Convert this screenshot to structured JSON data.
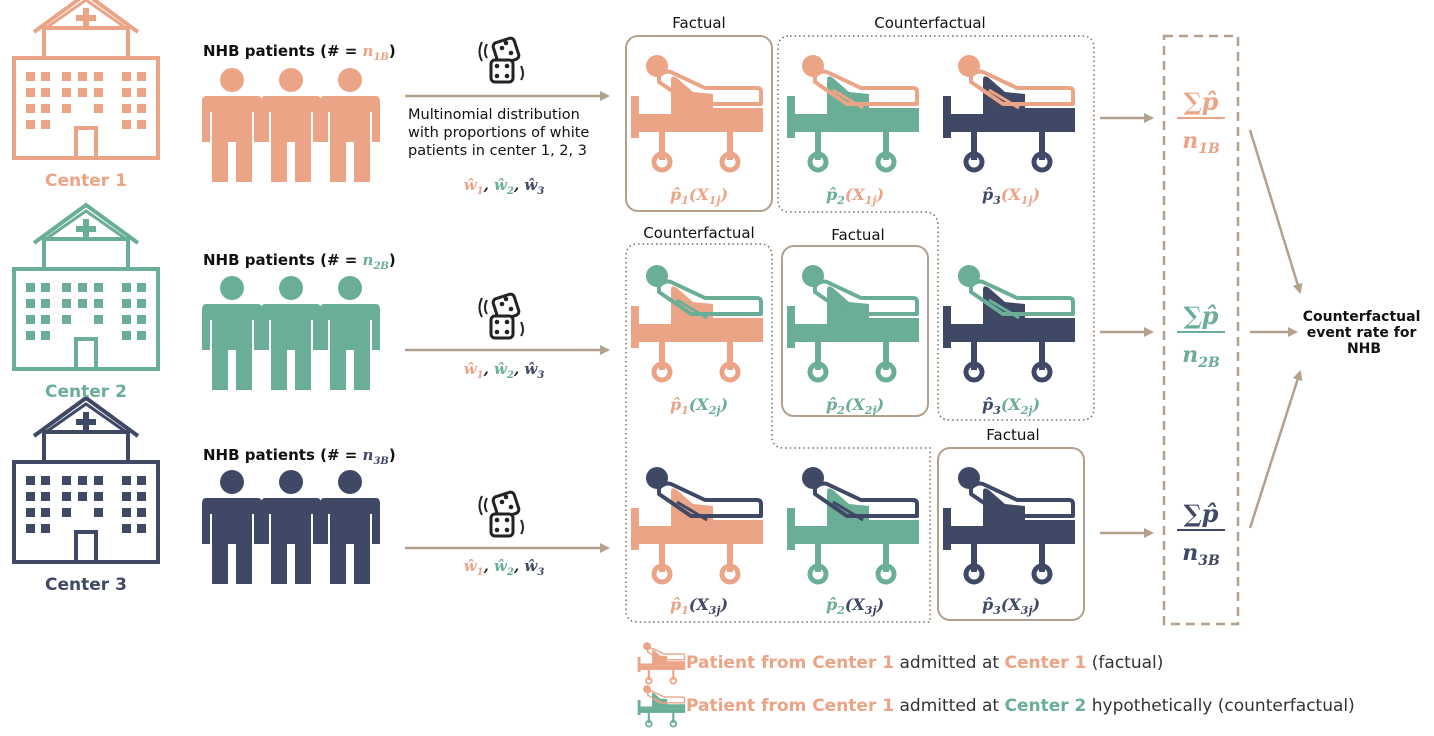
{
  "colors": {
    "center1": "#eba486",
    "center2": "#6aae96",
    "center3": "#3f4865",
    "frame": "#b3a08d",
    "text": "#111111"
  },
  "centers": [
    {
      "label": "Center 1",
      "patients_label": "NHB patients (# = ",
      "patients_var": "n",
      "patients_sub": "1B",
      "patients_close": ")"
    },
    {
      "label": "Center 2",
      "patients_label": "NHB patients (# = ",
      "patients_var": "n",
      "patients_sub": "2B",
      "patients_close": ")"
    },
    {
      "label": "Center 3",
      "patients_label": "NHB patients (# = ",
      "patients_var": "n",
      "patients_sub": "3B",
      "patients_close": ")"
    }
  ],
  "multinomial": {
    "line1": "Multinomial distribution",
    "line2": "with proportions of white",
    "line3": "patients in center 1, 2, 3"
  },
  "weights": [
    "ŵ",
    "ŵ",
    "ŵ"
  ],
  "weight_subs": [
    "1",
    "2",
    "3"
  ],
  "box_labels": {
    "factual": "Factual",
    "counterfactual": "Counterfactual"
  },
  "probs": {
    "p_hat": "p̂",
    "x": "X",
    "row_subs": [
      "1j",
      "2j",
      "3j"
    ],
    "col_subs": [
      "1",
      "2",
      "3"
    ]
  },
  "sums": {
    "numerator": "∑p̂",
    "denominators": [
      {
        "var": "n",
        "sub": "1B"
      },
      {
        "var": "n",
        "sub": "2B"
      },
      {
        "var": "n",
        "sub": "3B"
      }
    ]
  },
  "result": {
    "line1": "Counterfactual",
    "line2": "event rate for",
    "line3": "NHB"
  },
  "legend": [
    {
      "part1": "Patient from Center 1",
      "part2": " admitted at ",
      "part3": "Center 1",
      "part4": " (factual)"
    },
    {
      "part1": "Patient from Center 1",
      "part2": " admitted at ",
      "part3": "Center 2",
      "part4": " hypothetically (counterfactual)"
    }
  ]
}
